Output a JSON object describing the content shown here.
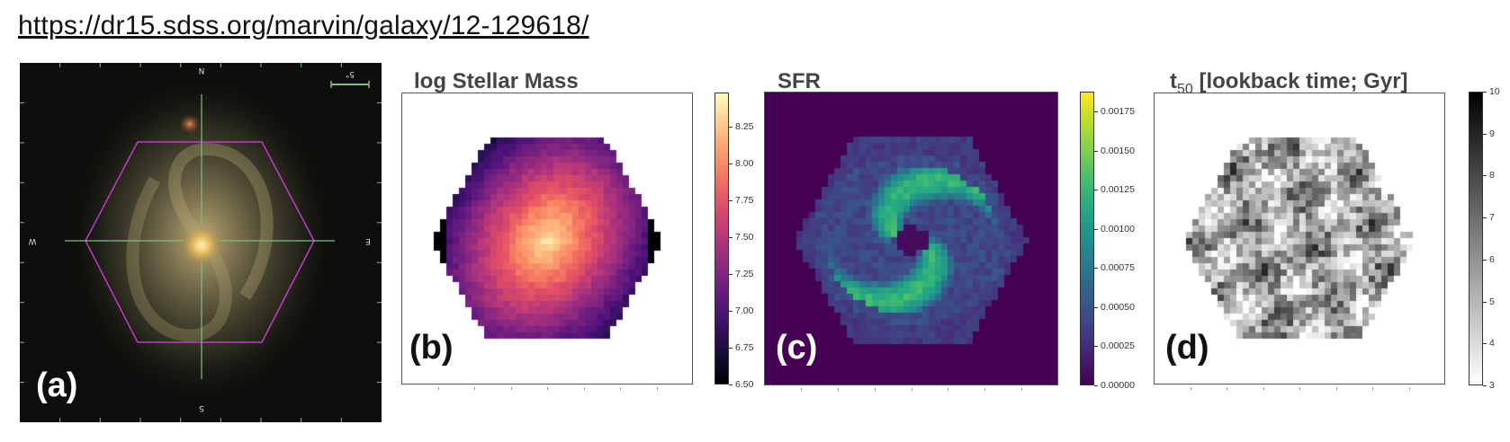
{
  "url_text": "https://dr15.sdss.org/marvin/galaxy/12-129618/",
  "panels": {
    "a": {
      "letter": "(a)",
      "compass": {
        "north": "N",
        "south": "S",
        "east": "E",
        "west": "W"
      },
      "scalebar_label": "5\"",
      "colors": {
        "background": "#0e0e0c",
        "hexagon": "#c03cc8",
        "crosshair": "#7fbf7f"
      }
    },
    "b": {
      "letter": "(b)",
      "title": "log Stellar Mass",
      "colorbar_ticks": [
        "8.25",
        "8.00",
        "7.75",
        "7.50",
        "7.25",
        "7.00",
        "6.75",
        "6.50"
      ],
      "colormap": "magma"
    },
    "c": {
      "letter": "(c)",
      "title": "SFR",
      "colorbar_ticks": [
        "0.00175",
        "0.00150",
        "0.00125",
        "0.00100",
        "0.00075",
        "0.00050",
        "0.00025",
        "0.00000"
      ],
      "colormap": "viridis",
      "background_color": "#440154"
    },
    "d": {
      "letter": "(d)",
      "title_main": "t",
      "title_sub": "50",
      "title_rest": " [lookback time; Gyr]",
      "colorbar_ticks": [
        "10",
        "9",
        "8",
        "7",
        "6",
        "5",
        "4",
        "3"
      ],
      "colormap": "gray_r"
    }
  }
}
